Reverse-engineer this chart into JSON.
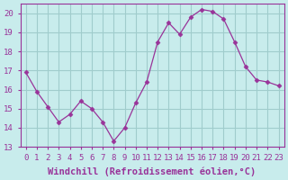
{
  "x": [
    0,
    1,
    2,
    3,
    4,
    5,
    6,
    7,
    8,
    9,
    10,
    11,
    12,
    13,
    14,
    15,
    16,
    17,
    18,
    19,
    20,
    21,
    22,
    23
  ],
  "y": [
    16.9,
    15.9,
    15.1,
    14.3,
    14.7,
    15.4,
    15.0,
    14.3,
    13.3,
    14.0,
    15.3,
    16.4,
    18.5,
    19.5,
    18.9,
    19.8,
    20.2,
    20.1,
    19.7,
    18.5,
    17.2,
    16.5,
    16.4,
    16.2
  ],
  "line_color": "#993399",
  "marker": "D",
  "marker_size": 2.5,
  "bg_color": "#c8ecec",
  "grid_color": "#a0cccc",
  "xlabel": "Windchill (Refroidissement éolien,°C)",
  "ylim": [
    13,
    20.5
  ],
  "xlim": [
    -0.5,
    23.5
  ],
  "yticks": [
    13,
    14,
    15,
    16,
    17,
    18,
    19,
    20
  ],
  "xticks": [
    0,
    1,
    2,
    3,
    4,
    5,
    6,
    7,
    8,
    9,
    10,
    11,
    12,
    13,
    14,
    15,
    16,
    17,
    18,
    19,
    20,
    21,
    22,
    23
  ],
  "tick_label_fontsize": 6.5,
  "xlabel_fontsize": 7.5
}
